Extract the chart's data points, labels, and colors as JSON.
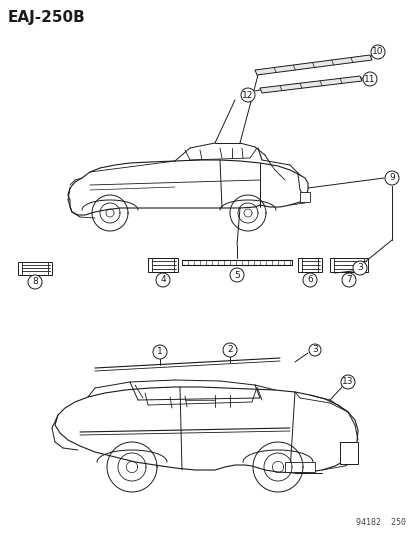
{
  "title_code": "EAJ-250B",
  "footer_code": "94182  250",
  "bg_color": "#ffffff",
  "line_color": "#1a1a1a",
  "fig_width": 4.14,
  "fig_height": 5.33,
  "dpi": 100
}
